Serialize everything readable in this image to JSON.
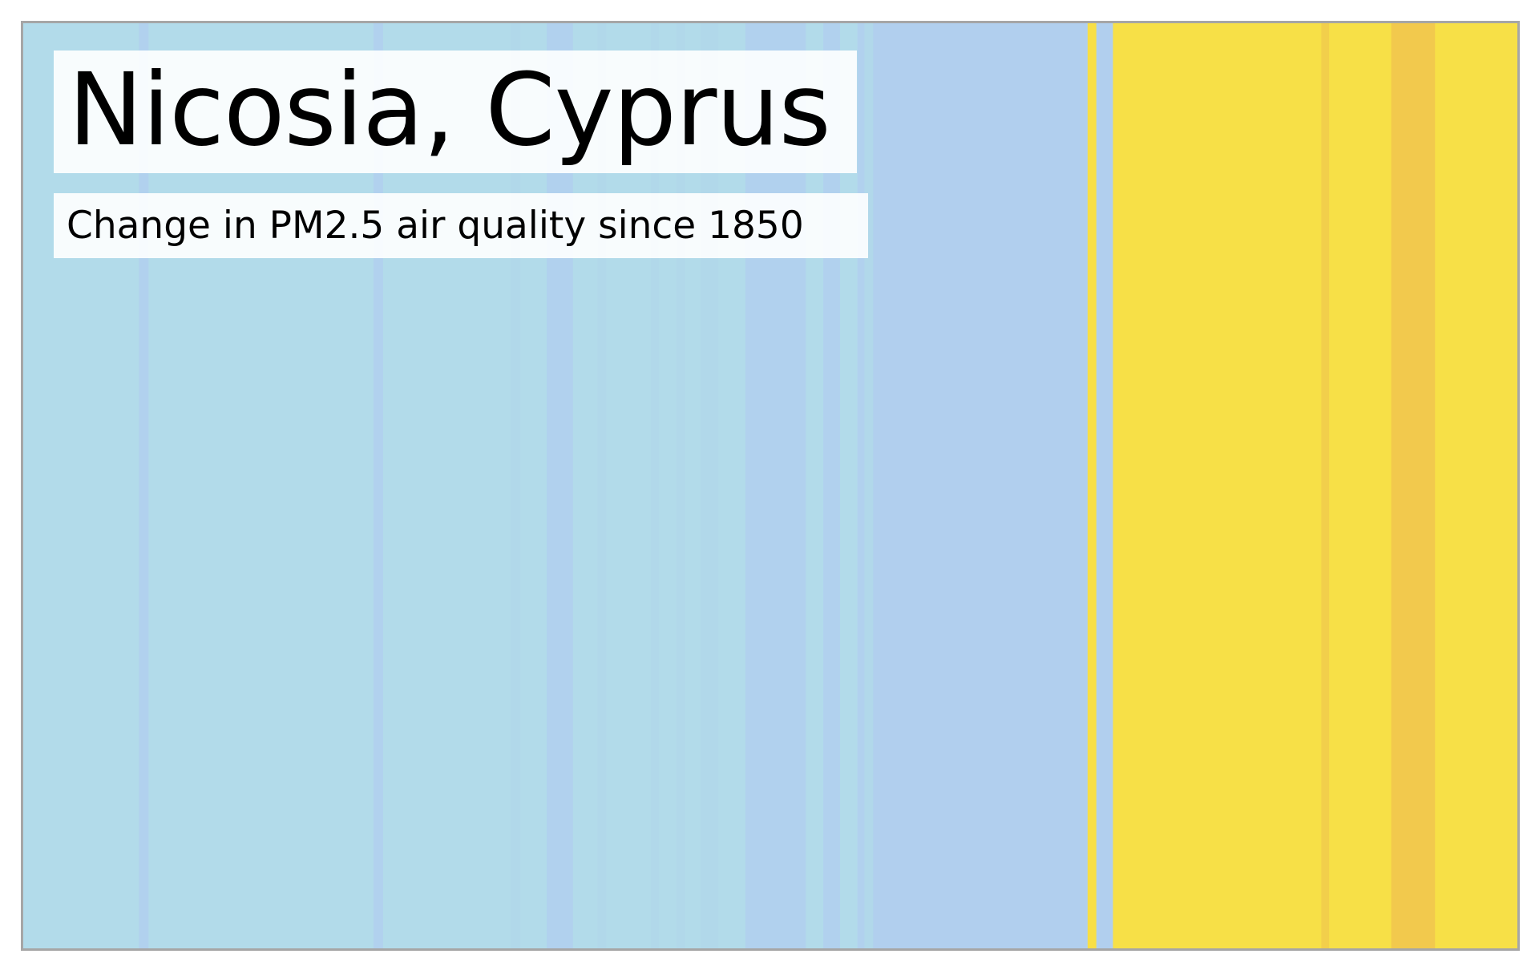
{
  "chart_data": {
    "type": "heatmap",
    "title": "Nicosia, Cyprus",
    "subtitle": "Change in PM2.5 air quality since 1850",
    "xlabel": "",
    "ylabel": "",
    "x": [
      1850,
      2021
    ],
    "grid": false,
    "legend": "none",
    "series": [
      {
        "start": 1850,
        "end": 1863.4,
        "color": "#b2dbea"
      },
      {
        "start": 1863.4,
        "end": 1864.5,
        "color": "#b1d1ee"
      },
      {
        "start": 1864.5,
        "end": 1890.2,
        "color": "#b2dbea"
      },
      {
        "start": 1890.2,
        "end": 1891.3,
        "color": "#b1d1ee"
      },
      {
        "start": 1891.3,
        "end": 1905.9,
        "color": "#b2dbea"
      },
      {
        "start": 1905.9,
        "end": 1907,
        "color": "#b1d8ea"
      },
      {
        "start": 1907,
        "end": 1910,
        "color": "#b2dbea"
      },
      {
        "start": 1910,
        "end": 1913,
        "color": "#b1d1ee"
      },
      {
        "start": 1913,
        "end": 1915.8,
        "color": "#b2dbea"
      },
      {
        "start": 1915.8,
        "end": 1916.8,
        "color": "#b1d8ea"
      },
      {
        "start": 1916.8,
        "end": 1921.9,
        "color": "#b2dbea"
      },
      {
        "start": 1921.9,
        "end": 1922.8,
        "color": "#b1d8ea"
      },
      {
        "start": 1922.8,
        "end": 1924.8,
        "color": "#b2dbea"
      },
      {
        "start": 1924.8,
        "end": 1925.8,
        "color": "#b1d8ea"
      },
      {
        "start": 1925.8,
        "end": 1927.6,
        "color": "#b2dbea"
      },
      {
        "start": 1927.6,
        "end": 1929.6,
        "color": "#b1d8ea"
      },
      {
        "start": 1929.6,
        "end": 1932.7,
        "color": "#b2dbea"
      },
      {
        "start": 1932.7,
        "end": 1939.6,
        "color": "#b1d1ee"
      },
      {
        "start": 1939.6,
        "end": 1941.6,
        "color": "#b2dbea"
      },
      {
        "start": 1941.6,
        "end": 1943.5,
        "color": "#b1d1ee"
      },
      {
        "start": 1943.5,
        "end": 1945.5,
        "color": "#b2dbea"
      },
      {
        "start": 1945.5,
        "end": 1946.3,
        "color": "#b1d1ee"
      },
      {
        "start": 1946.3,
        "end": 1947.3,
        "color": "#b1d8ea"
      },
      {
        "start": 1947.3,
        "end": 1971.8,
        "color": "#b1cfee"
      },
      {
        "start": 1971.8,
        "end": 1972.8,
        "color": "#f8df46"
      },
      {
        "start": 1972.8,
        "end": 1974.7,
        "color": "#b1cfee"
      },
      {
        "start": 1974.7,
        "end": 1998.5,
        "color": "#f7e047"
      },
      {
        "start": 1998.5,
        "end": 1999.4,
        "color": "#f2cf4b"
      },
      {
        "start": 1999.4,
        "end": 2006.5,
        "color": "#f7e047"
      },
      {
        "start": 2006.5,
        "end": 2011.5,
        "color": "#f2c94d"
      },
      {
        "start": 2011.5,
        "end": 2021,
        "color": "#f7e047"
      }
    ]
  }
}
